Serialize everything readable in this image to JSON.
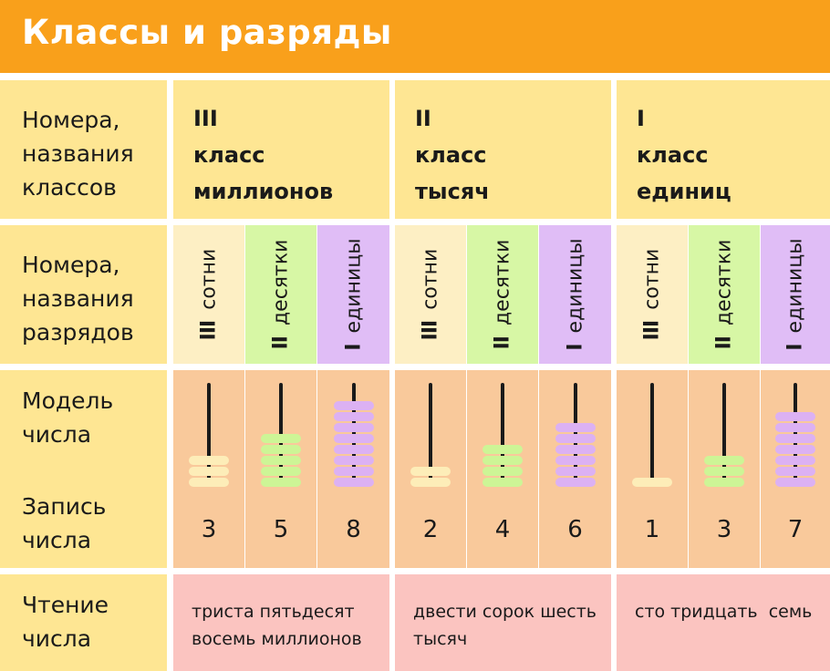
{
  "title": "Классы и разряды",
  "rows": {
    "classes_label": [
      "Номера,",
      "названия",
      "классов"
    ],
    "ranks_label": [
      "Номера,",
      "названия",
      "разрядов"
    ],
    "model_label": [
      "Модель",
      "числа"
    ],
    "write_label": [
      "Запись",
      "числа"
    ],
    "read_label": [
      "Чтение",
      "числа"
    ]
  },
  "classes": [
    {
      "num": "III",
      "line1": "класс",
      "line2": "миллионов",
      "reading": [
        "триста пятьдесят",
        "восемь миллионов"
      ]
    },
    {
      "num": "II",
      "line1": "класс",
      "line2": "тысяч",
      "reading": [
        "двести сорок шесть",
        "тысяч"
      ]
    },
    {
      "num": "I",
      "line1": "класс",
      "line2": "единиц",
      "reading": [
        "сто тридцать  семь"
      ]
    }
  ],
  "ranks": [
    {
      "num": "III",
      "name": "сотни"
    },
    {
      "num": "II",
      "name": "десятки"
    },
    {
      "num": "I",
      "name": "единицы"
    }
  ],
  "digits": [
    3,
    5,
    8,
    2,
    4,
    6,
    1,
    3,
    7
  ],
  "colors": {
    "banner": "#f9a01b",
    "header": "#fee693",
    "hundreds_bg": "#fdefc4",
    "tens_bg": "#d7f7a5",
    "units_bg": "#e0bdf6",
    "model_bg": "#f9c99b",
    "reading_bg": "#fbc4c0",
    "hundreds_bead": "#fdedb8",
    "tens_bead": "#cdf596",
    "units_bead": "#dcb1f3"
  }
}
